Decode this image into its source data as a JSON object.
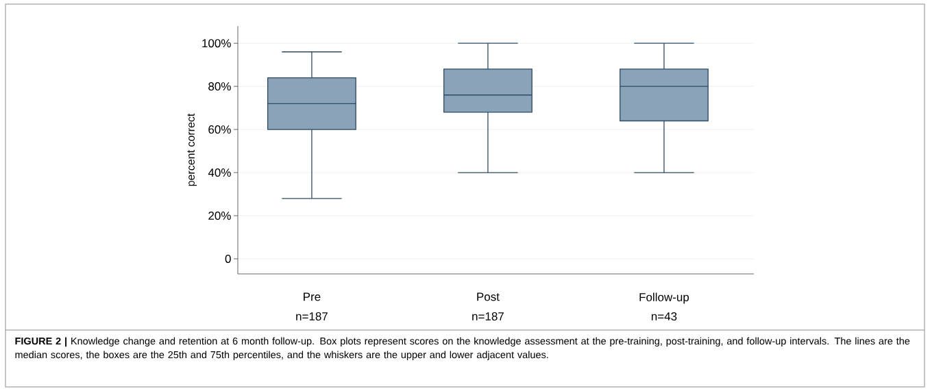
{
  "chart_data": {
    "type": "box",
    "ylabel": "percent correct",
    "categories": [
      "Pre",
      "Post",
      "Follow-up"
    ],
    "boxes": [
      {
        "low": 28,
        "q1": 60,
        "median": 72,
        "q3": 84,
        "high": 96
      },
      {
        "low": 40,
        "q1": 68,
        "median": 76,
        "q3": 88,
        "high": 100
      },
      {
        "low": 40,
        "q1": 64,
        "median": 80,
        "q3": 88,
        "high": 100
      }
    ],
    "color": "#8ba3b9",
    "ylim": [
      -7,
      108
    ],
    "yticks": [
      0,
      {
        "value": 20,
        "label": "20%"
      },
      {
        "value": 40,
        "label": "40%"
      },
      {
        "value": 60,
        "label": "60%"
      },
      {
        "value": 80,
        "label": "80%"
      },
      {
        "value": 100,
        "label": "100%"
      }
    ],
    "grid": "y",
    "annotations": [
      "n=187",
      "n=187",
      "n=43",
      "**FIGURE 2 |** Knowledge change and retention at 6 month follow-up. Box plots represent scores on the knowledge assessment at the pre-training, post-training, and follow-up intervals. The lines are the median scores, the boxes are the 25th and 75th percentiles, and the whiskers are the upper and lower adjacent values."
    ]
  }
}
